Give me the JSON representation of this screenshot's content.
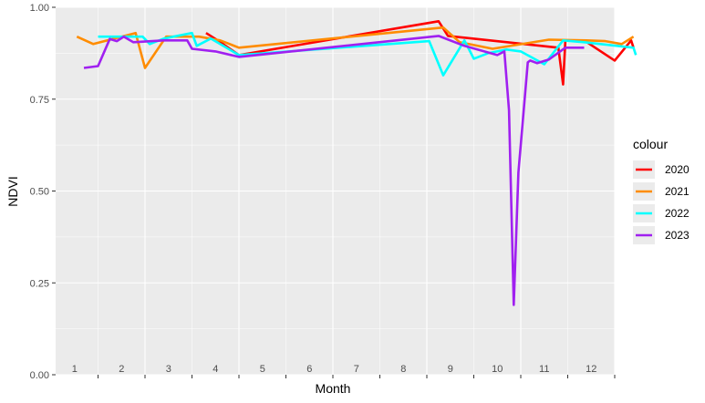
{
  "chart_data": {
    "type": "line",
    "title": "",
    "xlabel": "Month",
    "ylabel": "NDVI",
    "ylim": [
      0,
      1
    ],
    "yticks": [
      "0.00",
      "0.25",
      "0.50",
      "0.75",
      "1.00"
    ],
    "month_labels": [
      "1",
      "2",
      "3",
      "4",
      "5",
      "6",
      "7",
      "8",
      "9",
      "10",
      "11",
      "12"
    ],
    "grid": true,
    "legend": {
      "title": "colour",
      "position": "right"
    },
    "series": [
      {
        "name": "2020",
        "color": "#ff0000",
        "x": [
          3.3,
          3.55,
          4.0,
          8.25,
          8.45,
          10.8,
          10.9,
          10.95,
          11.35,
          12.0,
          12.35,
          12.4
        ],
        "y": [
          0.93,
          0.91,
          0.87,
          0.962,
          0.922,
          0.89,
          0.79,
          0.91,
          0.91,
          0.855,
          0.91,
          0.89
        ]
      },
      {
        "name": "2021",
        "color": "#ff8c00",
        "x": [
          0.55,
          0.9,
          1.8,
          2.0,
          2.45,
          3.15,
          3.6,
          4.0,
          8.35,
          8.7,
          9.4,
          10.6,
          11.4,
          11.8,
          12.15,
          12.4
        ],
        "y": [
          0.92,
          0.9,
          0.93,
          0.835,
          0.92,
          0.92,
          0.91,
          0.89,
          0.945,
          0.905,
          0.887,
          0.912,
          0.91,
          0.908,
          0.9,
          0.92
        ]
      },
      {
        "name": "2022",
        "color": "#00ffff",
        "x": [
          1.0,
          1.6,
          1.95,
          2.1,
          2.4,
          3.0,
          3.1,
          3.4,
          4.0,
          8.05,
          8.35,
          8.8,
          9.0,
          9.3,
          9.7,
          10.0,
          10.5,
          10.9,
          11.35,
          12.4,
          12.45
        ],
        "y": [
          0.92,
          0.92,
          0.92,
          0.9,
          0.915,
          0.93,
          0.895,
          0.915,
          0.87,
          0.908,
          0.815,
          0.91,
          0.86,
          0.875,
          0.885,
          0.88,
          0.845,
          0.91,
          0.905,
          0.89,
          0.87
        ]
      },
      {
        "name": "2023",
        "color": "#a020f0",
        "x": [
          0.7,
          1.0,
          1.25,
          1.4,
          1.55,
          1.75,
          2.4,
          2.65,
          2.9,
          3.0,
          3.5,
          4.0,
          8.25,
          8.8,
          9.5,
          9.65,
          9.75,
          9.85,
          9.95,
          10.15,
          10.2,
          10.35,
          10.6,
          10.95,
          11.35
        ],
        "y": [
          0.835,
          0.84,
          0.914,
          0.908,
          0.92,
          0.905,
          0.91,
          0.91,
          0.91,
          0.887,
          0.88,
          0.865,
          0.922,
          0.895,
          0.87,
          0.88,
          0.72,
          0.19,
          0.55,
          0.85,
          0.855,
          0.848,
          0.858,
          0.89,
          0.89
        ]
      }
    ]
  }
}
